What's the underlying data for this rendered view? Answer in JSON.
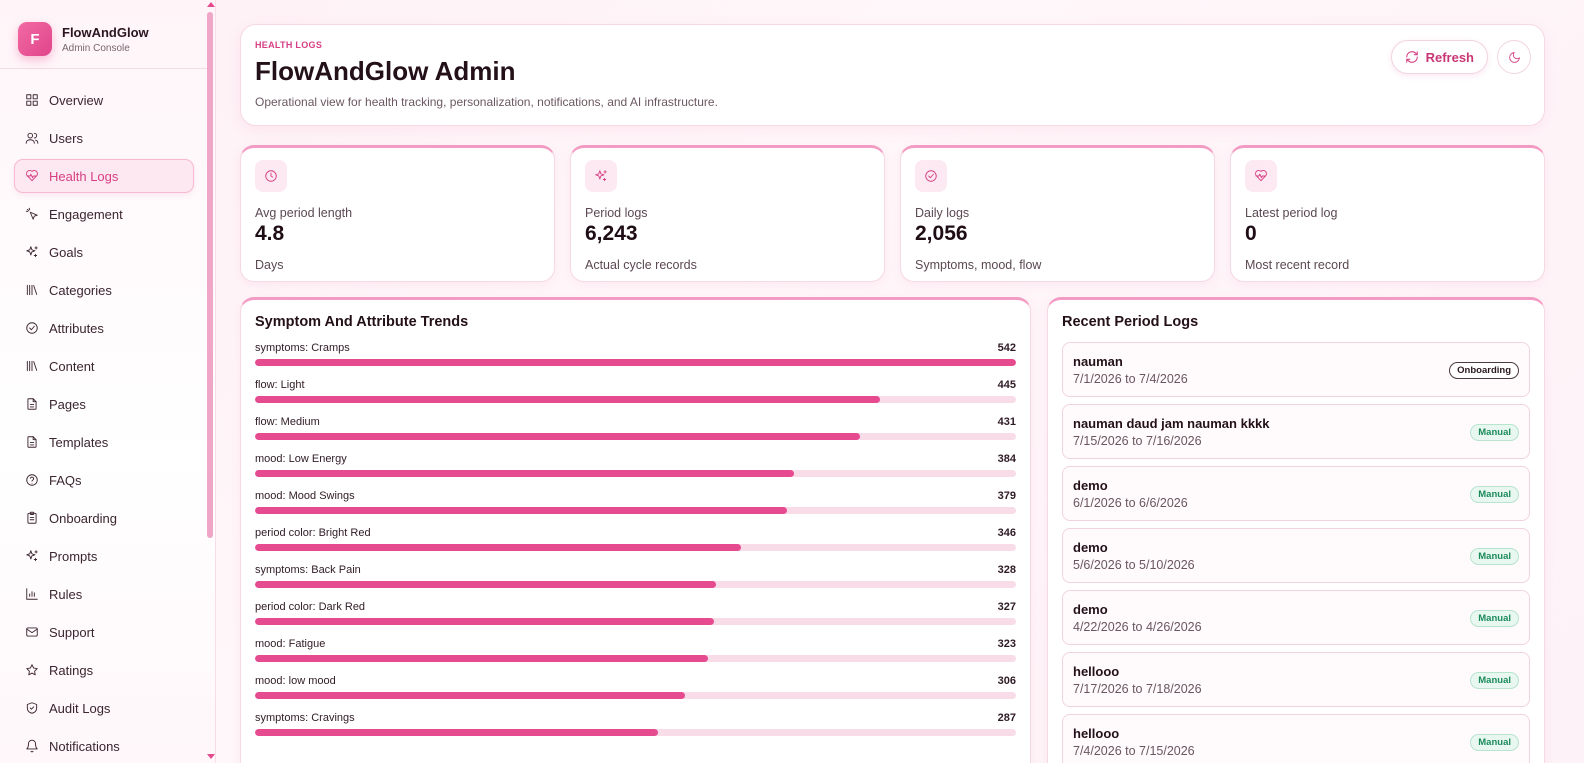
{
  "brand": {
    "logo_letter": "F",
    "name": "FlowAndGlow",
    "subtitle": "Admin Console"
  },
  "sidebar": {
    "items": [
      {
        "label": "Overview",
        "icon": "grid-icon",
        "active": false
      },
      {
        "label": "Users",
        "icon": "users-icon",
        "active": false
      },
      {
        "label": "Health Logs",
        "icon": "heart-pulse-icon",
        "active": true
      },
      {
        "label": "Engagement",
        "icon": "pointer-icon",
        "active": false
      },
      {
        "label": "Goals",
        "icon": "sparkles-icon",
        "active": false
      },
      {
        "label": "Categories",
        "icon": "library-icon",
        "active": false
      },
      {
        "label": "Attributes",
        "icon": "check-circle-icon",
        "active": false
      },
      {
        "label": "Content",
        "icon": "library-icon",
        "active": false
      },
      {
        "label": "Pages",
        "icon": "file-icon",
        "active": false
      },
      {
        "label": "Templates",
        "icon": "file-icon",
        "active": false
      },
      {
        "label": "FAQs",
        "icon": "help-circle-icon",
        "active": false
      },
      {
        "label": "Onboarding",
        "icon": "clipboard-icon",
        "active": false
      },
      {
        "label": "Prompts",
        "icon": "sparkles-icon",
        "active": false
      },
      {
        "label": "Rules",
        "icon": "bar-chart-icon",
        "active": false
      },
      {
        "label": "Support",
        "icon": "mail-icon",
        "active": false
      },
      {
        "label": "Ratings",
        "icon": "star-icon",
        "active": false
      },
      {
        "label": "Audit Logs",
        "icon": "shield-icon",
        "active": false
      },
      {
        "label": "Notifications",
        "icon": "bell-icon",
        "active": false
      }
    ]
  },
  "header": {
    "eyebrow": "HEALTH LOGS",
    "title": "FlowAndGlow Admin",
    "subtitle": "Operational view for health tracking, personalization, notifications, and AI infrastructure.",
    "refresh_label": "Refresh"
  },
  "stats": [
    {
      "label": "Avg period length",
      "value": "4.8",
      "note": "Days",
      "icon": "clock-icon"
    },
    {
      "label": "Period logs",
      "value": "6,243",
      "note": "Actual cycle records",
      "icon": "sparkles-icon"
    },
    {
      "label": "Daily logs",
      "value": "2,056",
      "note": "Symptoms, mood, flow",
      "icon": "check-circle-icon"
    },
    {
      "label": "Latest period log",
      "value": "0",
      "note": "Most recent record",
      "icon": "heart-pulse-icon"
    }
  ],
  "trends": {
    "title": "Symptom And Attribute Trends",
    "max": 542,
    "items": [
      {
        "label": "symptoms: Cramps",
        "count": 542
      },
      {
        "label": "flow: Light",
        "count": 445
      },
      {
        "label": "flow: Medium",
        "count": 431
      },
      {
        "label": "mood: Low Energy",
        "count": 384
      },
      {
        "label": "mood: Mood Swings",
        "count": 379
      },
      {
        "label": "period color: Bright Red",
        "count": 346
      },
      {
        "label": "symptoms: Back Pain",
        "count": 328
      },
      {
        "label": "period color: Dark Red",
        "count": 327
      },
      {
        "label": "mood: Fatigue",
        "count": 323
      },
      {
        "label": "mood: low mood",
        "count": 306
      },
      {
        "label": "symptoms: Cravings",
        "count": 287
      }
    ]
  },
  "recent": {
    "title": "Recent Period Logs",
    "items": [
      {
        "name": "nauman",
        "range": "7/1/2026 to 7/4/2026",
        "badge": "Onboarding"
      },
      {
        "name": "nauman daud jam nauman kkkk",
        "range": "7/15/2026 to 7/16/2026",
        "badge": "Manual"
      },
      {
        "name": "demo",
        "range": "6/1/2026 to 6/6/2026",
        "badge": "Manual"
      },
      {
        "name": "demo",
        "range": "5/6/2026 to 5/10/2026",
        "badge": "Manual"
      },
      {
        "name": "demo",
        "range": "4/22/2026 to 4/26/2026",
        "badge": "Manual"
      },
      {
        "name": "hellooo",
        "range": "7/17/2026 to 7/18/2026",
        "badge": "Manual"
      },
      {
        "name": "hellooo",
        "range": "7/4/2026 to 7/15/2026",
        "badge": "Manual"
      }
    ]
  },
  "colors": {
    "accent": "#e64b90",
    "accent_soft": "#fde8f1",
    "badge_green": "#1c8a5b"
  }
}
